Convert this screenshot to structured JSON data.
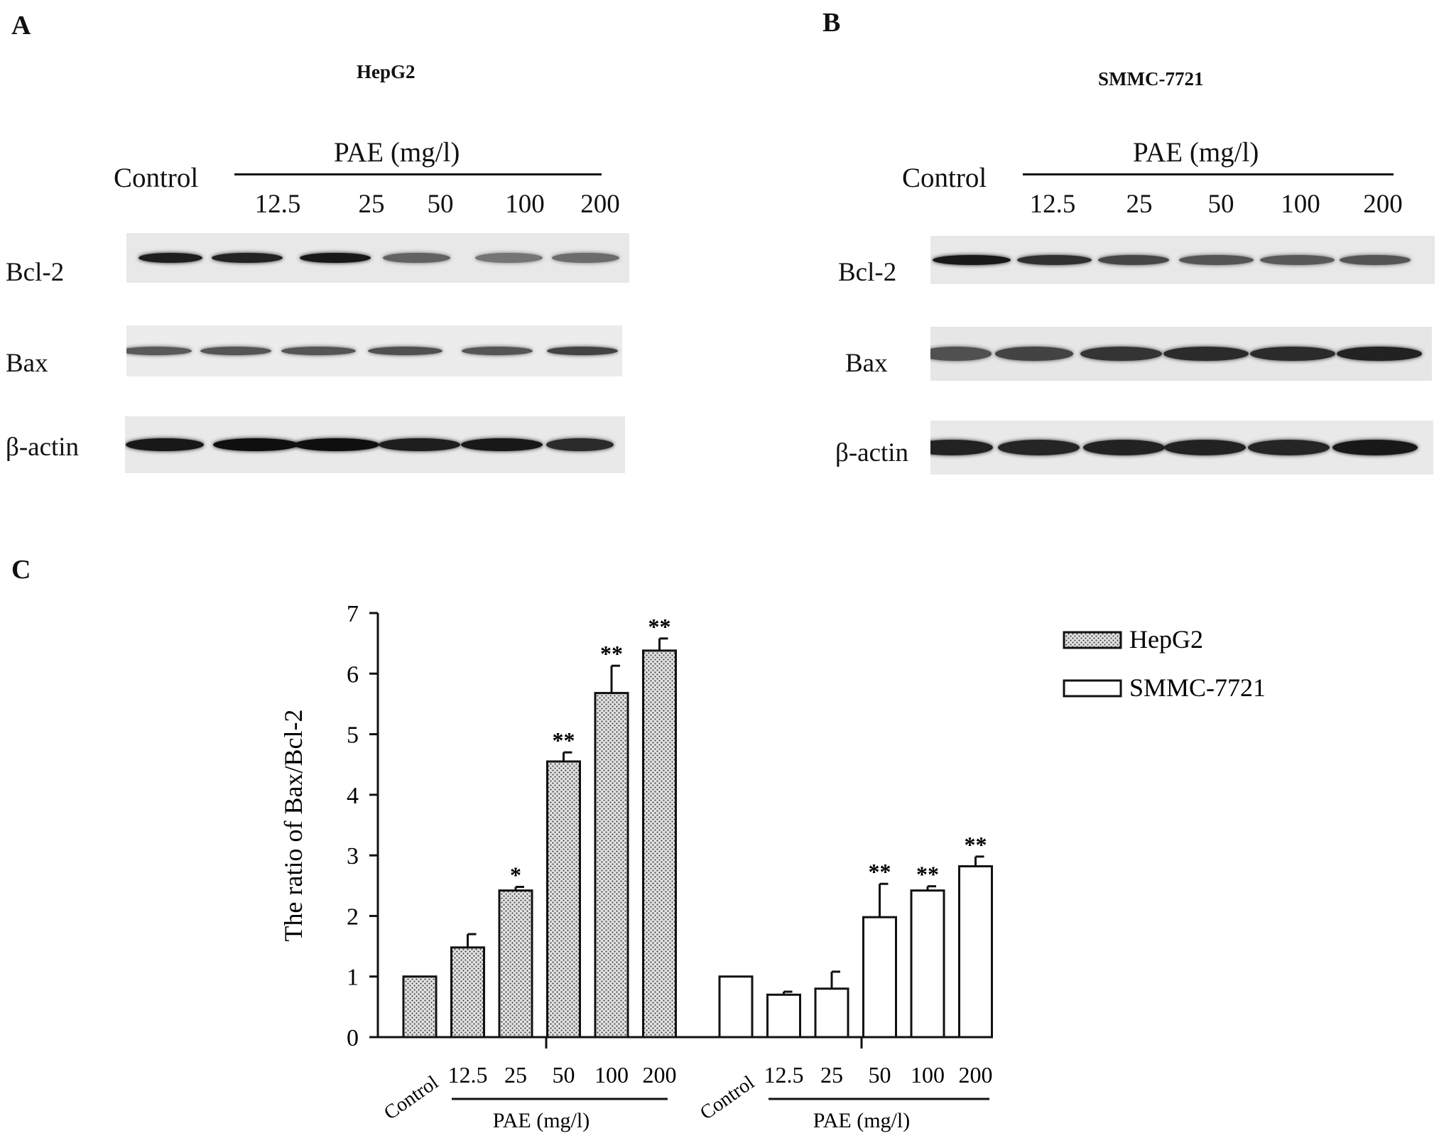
{
  "panels": {
    "a": {
      "letter": "A",
      "cell_line": "HepG2",
      "control_label": "Control",
      "treatment_label": "PAE (mg/l)",
      "concentrations": [
        "12.5",
        "25",
        "50",
        "100",
        "200"
      ],
      "rows": [
        {
          "label": "Bcl-2",
          "intensity": [
            0.92,
            0.9,
            0.95,
            0.55,
            0.45,
            0.5
          ]
        },
        {
          "label": "Bax",
          "intensity": [
            0.6,
            0.62,
            0.62,
            0.65,
            0.62,
            0.72
          ]
        },
        {
          "label": "β-actin",
          "intensity": [
            0.95,
            1.0,
            1.0,
            0.92,
            0.95,
            0.85
          ]
        }
      ]
    },
    "b": {
      "letter": "B",
      "cell_line": "SMMC-7721",
      "control_label": "Control",
      "treatment_label": "PAE (mg/l)",
      "concentrations": [
        "12.5",
        "25",
        "50",
        "100",
        "200"
      ],
      "rows": [
        {
          "label": "Bcl-2",
          "intensity": [
            0.95,
            0.82,
            0.7,
            0.62,
            0.6,
            0.62
          ]
        },
        {
          "label": "Bax",
          "intensity": [
            0.65,
            0.72,
            0.8,
            0.85,
            0.85,
            0.9
          ]
        },
        {
          "label": "β-actin",
          "intensity": [
            0.9,
            0.88,
            0.9,
            0.9,
            0.88,
            0.95
          ]
        }
      ]
    },
    "c": {
      "letter": "C"
    }
  },
  "chart_data": {
    "type": "bar",
    "ylabel": "The ratio of Bax/Bcl-2",
    "ylim": [
      0,
      7
    ],
    "yticks": [
      "0",
      "1",
      "2",
      "3",
      "4",
      "5",
      "6",
      "7"
    ],
    "group_axis_label": "PAE (mg/l)",
    "categories": [
      "Control",
      "12.5",
      "25",
      "50",
      "100",
      "200"
    ],
    "legend_position": "top-right",
    "series": [
      {
        "name": "HepG2",
        "pattern": "dotted",
        "values": [
          1.0,
          1.48,
          2.42,
          4.55,
          5.68,
          6.38
        ],
        "errors": [
          0.0,
          0.22,
          0.06,
          0.15,
          0.45,
          0.2
        ],
        "significance": [
          "",
          "",
          "*",
          "**",
          "**",
          "**"
        ]
      },
      {
        "name": "SMMC-7721",
        "pattern": "open",
        "values": [
          1.0,
          0.7,
          0.8,
          1.98,
          2.42,
          2.82
        ],
        "errors": [
          0.0,
          0.05,
          0.28,
          0.55,
          0.07,
          0.16
        ],
        "significance": [
          "",
          "",
          "",
          "**",
          "**",
          "**"
        ]
      }
    ]
  }
}
